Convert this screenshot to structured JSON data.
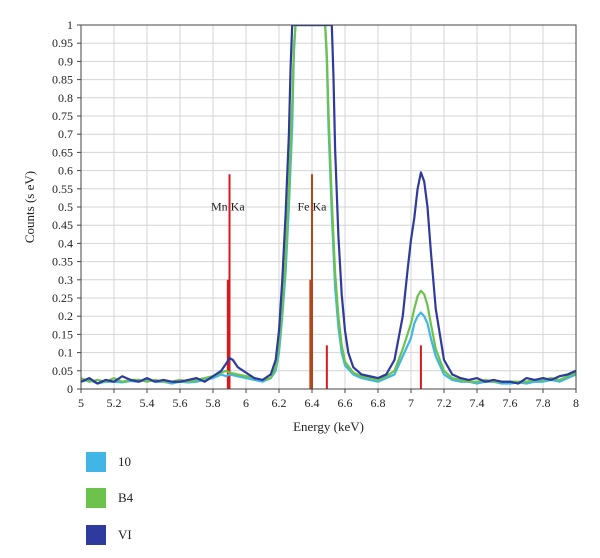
{
  "chart_data": {
    "type": "line",
    "xlabel": "Energy (keV)",
    "ylabel": "Counts (s eV)",
    "xlim": [
      5,
      8
    ],
    "ylim": [
      0,
      1
    ],
    "xticks": [
      "5",
      "5.2",
      "5.4",
      "5.6",
      "5.8",
      "6",
      "6.2",
      "6.4",
      "6.6",
      "6.8",
      "7",
      "7.2",
      "7.4",
      "7.6",
      "7.8",
      "8"
    ],
    "yticks": [
      "0",
      "0.05",
      "0.1",
      "0.15",
      "0.2",
      "0.25",
      "0.3",
      "0.35",
      "0.4",
      "0.45",
      "0.5",
      "0.55",
      "0.6",
      "0.65",
      "0.7",
      "0.75",
      "0.8",
      "0.85",
      "0.9",
      "0.95",
      "1"
    ],
    "grid": true,
    "legend_position": "bottom-left",
    "series": [
      {
        "name": "10",
        "color": "#41b6e6",
        "points": [
          [
            5.0,
            0.02
          ],
          [
            5.05,
            0.025
          ],
          [
            5.1,
            0.015
          ],
          [
            5.15,
            0.02
          ],
          [
            5.2,
            0.02
          ],
          [
            5.25,
            0.018
          ],
          [
            5.3,
            0.022
          ],
          [
            5.35,
            0.02
          ],
          [
            5.4,
            0.025
          ],
          [
            5.45,
            0.02
          ],
          [
            5.5,
            0.02
          ],
          [
            5.55,
            0.015
          ],
          [
            5.6,
            0.02
          ],
          [
            5.65,
            0.018
          ],
          [
            5.7,
            0.02
          ],
          [
            5.75,
            0.025
          ],
          [
            5.8,
            0.03
          ],
          [
            5.85,
            0.04
          ],
          [
            5.88,
            0.035
          ],
          [
            5.9,
            0.04
          ],
          [
            5.95,
            0.035
          ],
          [
            6.0,
            0.03
          ],
          [
            6.05,
            0.025
          ],
          [
            6.1,
            0.02
          ],
          [
            6.15,
            0.03
          ],
          [
            6.18,
            0.05
          ],
          [
            6.2,
            0.1
          ],
          [
            6.22,
            0.2
          ],
          [
            6.24,
            0.32
          ],
          [
            6.26,
            0.5
          ],
          [
            6.28,
            0.72
          ],
          [
            6.29,
            0.92
          ],
          [
            6.3,
            1.0
          ],
          [
            6.48,
            1.0
          ],
          [
            6.49,
            0.9
          ],
          [
            6.5,
            0.72
          ],
          [
            6.52,
            0.48
          ],
          [
            6.54,
            0.28
          ],
          [
            6.56,
            0.17
          ],
          [
            6.58,
            0.1
          ],
          [
            6.6,
            0.065
          ],
          [
            6.65,
            0.04
          ],
          [
            6.7,
            0.03
          ],
          [
            6.75,
            0.025
          ],
          [
            6.8,
            0.02
          ],
          [
            6.85,
            0.03
          ],
          [
            6.9,
            0.04
          ],
          [
            6.95,
            0.09
          ],
          [
            7.0,
            0.14
          ],
          [
            7.02,
            0.18
          ],
          [
            7.04,
            0.2
          ],
          [
            7.06,
            0.21
          ],
          [
            7.08,
            0.2
          ],
          [
            7.1,
            0.18
          ],
          [
            7.12,
            0.14
          ],
          [
            7.15,
            0.09
          ],
          [
            7.2,
            0.04
          ],
          [
            7.25,
            0.025
          ],
          [
            7.3,
            0.02
          ],
          [
            7.35,
            0.02
          ],
          [
            7.4,
            0.015
          ],
          [
            7.45,
            0.02
          ],
          [
            7.5,
            0.02
          ],
          [
            7.55,
            0.015
          ],
          [
            7.6,
            0.015
          ],
          [
            7.65,
            0.018
          ],
          [
            7.7,
            0.015
          ],
          [
            7.75,
            0.02
          ],
          [
            7.8,
            0.02
          ],
          [
            7.85,
            0.025
          ],
          [
            7.9,
            0.02
          ],
          [
            7.95,
            0.03
          ],
          [
            8.0,
            0.04
          ]
        ]
      },
      {
        "name": "B4",
        "color": "#6cc24a",
        "points": [
          [
            5.0,
            0.03
          ],
          [
            5.05,
            0.02
          ],
          [
            5.1,
            0.025
          ],
          [
            5.15,
            0.02
          ],
          [
            5.2,
            0.03
          ],
          [
            5.25,
            0.02
          ],
          [
            5.3,
            0.025
          ],
          [
            5.35,
            0.025
          ],
          [
            5.4,
            0.02
          ],
          [
            5.45,
            0.025
          ],
          [
            5.5,
            0.02
          ],
          [
            5.55,
            0.02
          ],
          [
            5.6,
            0.025
          ],
          [
            5.65,
            0.02
          ],
          [
            5.7,
            0.025
          ],
          [
            5.75,
            0.03
          ],
          [
            5.8,
            0.035
          ],
          [
            5.85,
            0.045
          ],
          [
            5.88,
            0.05
          ],
          [
            5.9,
            0.045
          ],
          [
            5.95,
            0.04
          ],
          [
            6.0,
            0.035
          ],
          [
            6.05,
            0.03
          ],
          [
            6.1,
            0.025
          ],
          [
            6.15,
            0.03
          ],
          [
            6.18,
            0.06
          ],
          [
            6.2,
            0.12
          ],
          [
            6.22,
            0.22
          ],
          [
            6.24,
            0.36
          ],
          [
            6.26,
            0.55
          ],
          [
            6.28,
            0.78
          ],
          [
            6.29,
            0.94
          ],
          [
            6.3,
            1.0
          ],
          [
            6.48,
            1.0
          ],
          [
            6.49,
            0.92
          ],
          [
            6.5,
            0.76
          ],
          [
            6.52,
            0.52
          ],
          [
            6.54,
            0.32
          ],
          [
            6.56,
            0.2
          ],
          [
            6.58,
            0.12
          ],
          [
            6.6,
            0.075
          ],
          [
            6.65,
            0.045
          ],
          [
            6.7,
            0.035
          ],
          [
            6.75,
            0.03
          ],
          [
            6.8,
            0.025
          ],
          [
            6.85,
            0.035
          ],
          [
            6.9,
            0.05
          ],
          [
            6.95,
            0.11
          ],
          [
            7.0,
            0.18
          ],
          [
            7.02,
            0.22
          ],
          [
            7.04,
            0.255
          ],
          [
            7.06,
            0.27
          ],
          [
            7.08,
            0.26
          ],
          [
            7.1,
            0.23
          ],
          [
            7.12,
            0.18
          ],
          [
            7.15,
            0.11
          ],
          [
            7.2,
            0.05
          ],
          [
            7.25,
            0.03
          ],
          [
            7.3,
            0.025
          ],
          [
            7.35,
            0.02
          ],
          [
            7.4,
            0.02
          ],
          [
            7.45,
            0.025
          ],
          [
            7.5,
            0.02
          ],
          [
            7.55,
            0.02
          ],
          [
            7.6,
            0.02
          ],
          [
            7.65,
            0.02
          ],
          [
            7.7,
            0.02
          ],
          [
            7.75,
            0.025
          ],
          [
            7.8,
            0.025
          ],
          [
            7.85,
            0.03
          ],
          [
            7.9,
            0.025
          ],
          [
            7.95,
            0.035
          ],
          [
            8.0,
            0.045
          ]
        ]
      },
      {
        "name": "VI",
        "color": "#2e3a9e",
        "points": [
          [
            5.0,
            0.02
          ],
          [
            5.05,
            0.03
          ],
          [
            5.1,
            0.015
          ],
          [
            5.15,
            0.025
          ],
          [
            5.2,
            0.02
          ],
          [
            5.25,
            0.035
          ],
          [
            5.3,
            0.025
          ],
          [
            5.35,
            0.02
          ],
          [
            5.4,
            0.03
          ],
          [
            5.45,
            0.02
          ],
          [
            5.5,
            0.025
          ],
          [
            5.55,
            0.02
          ],
          [
            5.6,
            0.02
          ],
          [
            5.65,
            0.025
          ],
          [
            5.7,
            0.03
          ],
          [
            5.75,
            0.02
          ],
          [
            5.8,
            0.035
          ],
          [
            5.85,
            0.05
          ],
          [
            5.88,
            0.07
          ],
          [
            5.9,
            0.085
          ],
          [
            5.92,
            0.08
          ],
          [
            5.95,
            0.06
          ],
          [
            6.0,
            0.045
          ],
          [
            6.05,
            0.03
          ],
          [
            6.1,
            0.025
          ],
          [
            6.15,
            0.04
          ],
          [
            6.18,
            0.08
          ],
          [
            6.2,
            0.16
          ],
          [
            6.22,
            0.3
          ],
          [
            6.24,
            0.48
          ],
          [
            6.26,
            0.7
          ],
          [
            6.27,
            0.88
          ],
          [
            6.28,
            1.0
          ],
          [
            6.52,
            1.0
          ],
          [
            6.53,
            0.86
          ],
          [
            6.54,
            0.66
          ],
          [
            6.56,
            0.42
          ],
          [
            6.58,
            0.26
          ],
          [
            6.6,
            0.16
          ],
          [
            6.62,
            0.1
          ],
          [
            6.65,
            0.06
          ],
          [
            6.7,
            0.04
          ],
          [
            6.75,
            0.035
          ],
          [
            6.8,
            0.03
          ],
          [
            6.85,
            0.04
          ],
          [
            6.9,
            0.08
          ],
          [
            6.95,
            0.2
          ],
          [
            6.98,
            0.33
          ],
          [
            7.0,
            0.41
          ],
          [
            7.02,
            0.47
          ],
          [
            7.04,
            0.55
          ],
          [
            7.06,
            0.595
          ],
          [
            7.08,
            0.57
          ],
          [
            7.1,
            0.5
          ],
          [
            7.12,
            0.38
          ],
          [
            7.15,
            0.22
          ],
          [
            7.2,
            0.08
          ],
          [
            7.25,
            0.04
          ],
          [
            7.3,
            0.03
          ],
          [
            7.35,
            0.025
          ],
          [
            7.4,
            0.03
          ],
          [
            7.45,
            0.02
          ],
          [
            7.5,
            0.025
          ],
          [
            7.55,
            0.02
          ],
          [
            7.6,
            0.02
          ],
          [
            7.65,
            0.015
          ],
          [
            7.7,
            0.03
          ],
          [
            7.75,
            0.025
          ],
          [
            7.8,
            0.03
          ],
          [
            7.85,
            0.025
          ],
          [
            7.9,
            0.035
          ],
          [
            7.95,
            0.04
          ],
          [
            8.0,
            0.05
          ]
        ]
      }
    ],
    "marker_lines": [
      {
        "x": 5.89,
        "y": 0.3,
        "color": "#d7191c"
      },
      {
        "x": 5.9,
        "y": 0.59,
        "color": "#d7191c"
      },
      {
        "x": 6.39,
        "y": 0.3,
        "color": "#b5451b"
      },
      {
        "x": 6.4,
        "y": 0.59,
        "color": "#b5451b"
      },
      {
        "x": 6.49,
        "y": 0.12,
        "color": "#d7191c"
      },
      {
        "x": 7.06,
        "y": 0.12,
        "color": "#d7191c"
      }
    ],
    "annotations": [
      {
        "text": "Mn Ka",
        "x": 5.89,
        "y": 0.49
      },
      {
        "text": "Fe Ka",
        "x": 6.4,
        "y": 0.49
      }
    ]
  }
}
